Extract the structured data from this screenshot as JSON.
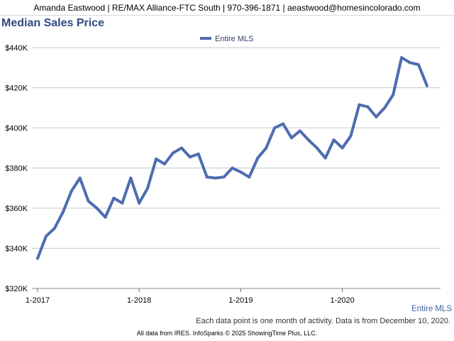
{
  "header": {
    "contact": "Amanda Eastwood | RE/MAX Alliance-FTC South | 970-396-1871 | aeastwood@homesincolorado.com"
  },
  "colors": {
    "series": "#4e6cb0",
    "title": "#2f4b80"
  },
  "chart_data": {
    "type": "line",
    "title": "Median Sales Price",
    "series": [
      {
        "name": "Entire MLS",
        "values": [
          335000,
          346000,
          350000,
          358000,
          368500,
          375000,
          363500,
          360000,
          355500,
          365000,
          362500,
          375000,
          362500,
          370000,
          384500,
          382000,
          387500,
          390000,
          385500,
          387000,
          375500,
          375000,
          375500,
          380000,
          378000,
          375500,
          385000,
          390000,
          400000,
          402000,
          395000,
          398500,
          394000,
          390000,
          385000,
          394000,
          390000,
          396000,
          411500,
          410500,
          405500,
          410000,
          416500,
          435000,
          432500,
          431500,
          421000
        ]
      }
    ],
    "x_start": "2017-01",
    "x_ticks": [
      "1-2017",
      "1-2018",
      "1-2019",
      "1-2020"
    ],
    "y_ticks": [
      "$320K",
      "$340K",
      "$360K",
      "$380K",
      "$400K",
      "$420K",
      "$440K"
    ],
    "ylim": [
      320000,
      440000
    ],
    "grid": "horizontal",
    "legend_position": "top-center",
    "legend_label": "Entire MLS",
    "bottom_right_label": "Entire MLS",
    "note": "Each data point is one month of activity. Data is from December 10, 2020."
  },
  "footer": {
    "source": "All data from IRES. InfoSparks © 2025 ShowingTime Plus, LLC."
  }
}
